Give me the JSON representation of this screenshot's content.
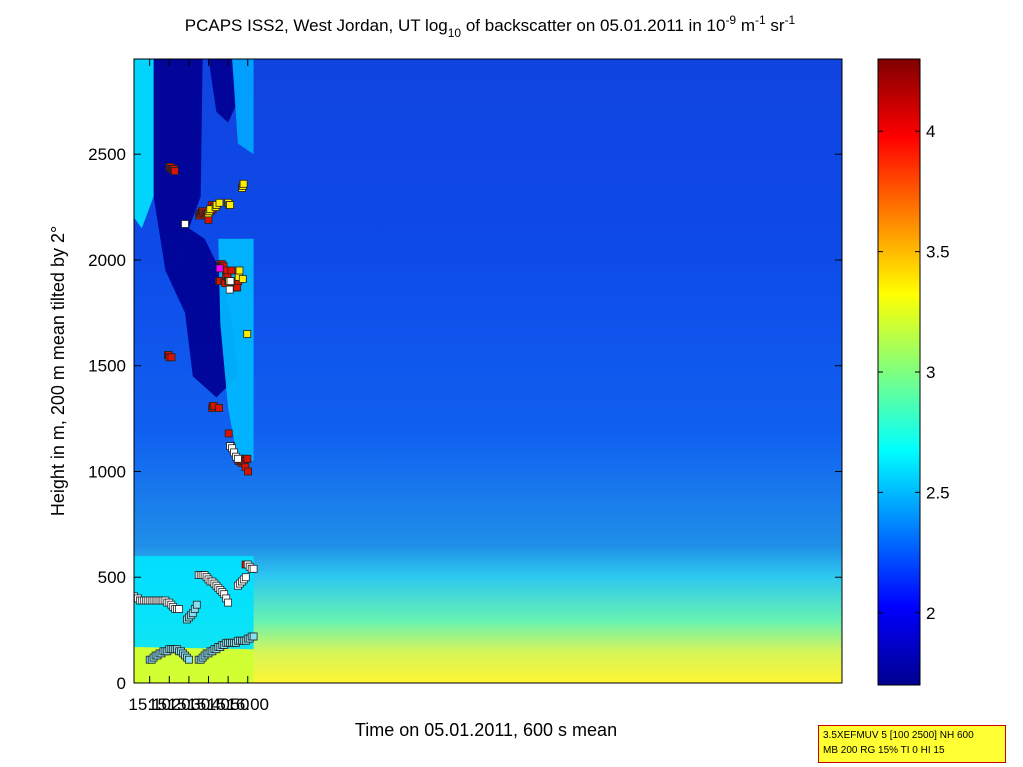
{
  "chart_data": {
    "type": "heatmap",
    "title": {
      "prefix": "PCAPS ISS2, West Jordan, UT log",
      "log_sub": "10",
      "mid": " of backscatter on 05.01.2011 in 10",
      "exp1": "-9",
      "unit_m": " m",
      "exp2": "-1",
      "unit_sr": " sr",
      "exp3": "-1"
    },
    "xlabel": "Time on 05.01.2011, 600 s mean",
    "ylabel": "Height in m, 200 m mean tilted by 2°",
    "x_range_min": [
      902,
      1263
    ],
    "ylim": [
      0,
      2950
    ],
    "x_ticks": [
      {
        "value": 910,
        "label": "15:10"
      },
      {
        "value": 920,
        "label": "15:20"
      },
      {
        "value": 930,
        "label": "15:30"
      },
      {
        "value": 940,
        "label": "15:40"
      },
      {
        "value": 950,
        "label": "15:50"
      },
      {
        "value": 960,
        "label": "16:00"
      }
    ],
    "y_ticks": [
      0,
      500,
      1000,
      1500,
      2000,
      2500
    ],
    "colorbar": {
      "range": [
        1.7,
        4.3
      ],
      "ticks": [
        2,
        2.5,
        3,
        3.5,
        4
      ],
      "tick_labels": [
        "2",
        "2.5",
        "3",
        "3.5",
        "4"
      ]
    },
    "regions": [
      {
        "name": "surface-layer",
        "value": 3.2,
        "polygon": [
          [
            902,
            0
          ],
          [
            963,
            0
          ],
          [
            963,
            160
          ],
          [
            902,
            170
          ]
        ]
      },
      {
        "name": "aerosol-top",
        "value": 2.6,
        "polygon": [
          [
            902,
            170
          ],
          [
            963,
            160
          ],
          [
            963,
            600
          ],
          [
            902,
            600
          ]
        ]
      },
      {
        "name": "dark-band-upper",
        "value": 1.75,
        "polygon": [
          [
            912,
            2950
          ],
          [
            937,
            2950
          ],
          [
            936,
            2300
          ],
          [
            930,
            2150
          ],
          [
            925,
            2000
          ],
          [
            918,
            1950
          ],
          [
            912,
            2300
          ]
        ]
      },
      {
        "name": "dark-band-mid",
        "value": 1.75,
        "polygon": [
          [
            918,
            1950
          ],
          [
            928,
            1750
          ],
          [
            932,
            1450
          ],
          [
            944,
            1350
          ],
          [
            955,
            1450
          ],
          [
            952,
            1700
          ],
          [
            946,
            1950
          ],
          [
            938,
            2100
          ],
          [
            930,
            2150
          ],
          [
            925,
            2000
          ]
        ]
      },
      {
        "name": "dark-top-right",
        "value": 1.75,
        "polygon": [
          [
            940,
            2950
          ],
          [
            952,
            2950
          ],
          [
            955,
            2750
          ],
          [
            950,
            2650
          ],
          [
            944,
            2700
          ]
        ]
      },
      {
        "name": "light-upper-left",
        "value": 2.6,
        "polygon": [
          [
            902,
            2950
          ],
          [
            912,
            2950
          ],
          [
            912,
            2300
          ],
          [
            906,
            2150
          ],
          [
            902,
            2200
          ]
        ]
      },
      {
        "name": "light-right",
        "value": 2.5,
        "polygon": [
          [
            945,
            2100
          ],
          [
            963,
            2100
          ],
          [
            963,
            1050
          ],
          [
            955,
            1050
          ],
          [
            950,
            1300
          ],
          [
            946,
            1700
          ]
        ]
      },
      {
        "name": "light-top-right",
        "value": 2.45,
        "polygon": [
          [
            952,
            2950
          ],
          [
            963,
            2950
          ],
          [
            963,
            2500
          ],
          [
            955,
            2550
          ]
        ]
      }
    ],
    "series": [
      {
        "name": "cloud-base-red",
        "color": "#dd1100",
        "points": [
          [
            920.1,
            2440
          ],
          [
            920.6,
            2440
          ],
          [
            921.1,
            2430
          ],
          [
            921.5,
            2430
          ],
          [
            922,
            2430
          ],
          [
            922.4,
            2430
          ],
          [
            922.8,
            2420
          ],
          [
            919.3,
            1550
          ],
          [
            919.7,
            1550
          ],
          [
            920.1,
            1540
          ],
          [
            921.1,
            1540
          ],
          [
            935.2,
            2210
          ],
          [
            935.7,
            2220
          ],
          [
            936.1,
            2220
          ],
          [
            936.6,
            2230
          ],
          [
            937,
            2230
          ],
          [
            937.5,
            2220
          ],
          [
            938.3,
            2210
          ],
          [
            938.8,
            2220
          ],
          [
            939.3,
            2220
          ],
          [
            940,
            2190
          ],
          [
            941.1,
            2230
          ],
          [
            941.6,
            2260
          ],
          [
            942.1,
            2240
          ],
          [
            942.6,
            2250
          ],
          [
            941.8,
            1300
          ],
          [
            942.2,
            1310
          ],
          [
            942.7,
            1310
          ],
          [
            945.4,
            1300
          ],
          [
            945.3,
            1900
          ],
          [
            945.8,
            1900
          ],
          [
            946,
            1980
          ],
          [
            946.4,
            1970
          ],
          [
            946.8,
            1980
          ],
          [
            947.2,
            1970
          ],
          [
            947.7,
            1970
          ],
          [
            948.1,
            1900
          ],
          [
            948.5,
            1890
          ],
          [
            948.9,
            1930
          ],
          [
            949.3,
            1950
          ],
          [
            949.7,
            1920
          ],
          [
            950.1,
            1900
          ],
          [
            951.2,
            1880
          ],
          [
            951.7,
            1950
          ],
          [
            952.2,
            1890
          ],
          [
            952.6,
            1880
          ],
          [
            953,
            1870
          ],
          [
            953.4,
            1870
          ],
          [
            953.8,
            1870
          ],
          [
            954.2,
            1870
          ],
          [
            954.6,
            1870
          ],
          [
            955.2,
            1900
          ],
          [
            950.3,
            1180
          ],
          [
            954.8,
            1060
          ],
          [
            955.3,
            1050
          ],
          [
            955.8,
            1060
          ],
          [
            956.3,
            1050
          ],
          [
            956.8,
            1040
          ],
          [
            957.3,
            1050
          ],
          [
            957.8,
            1060
          ],
          [
            958.3,
            1050
          ],
          [
            958.8,
            1020
          ],
          [
            959.3,
            1060
          ],
          [
            959.8,
            1060
          ],
          [
            960.2,
            1000
          ],
          [
            958.9,
            560
          ]
        ]
      },
      {
        "name": "cloud-base-yellow",
        "color": "#ffee00",
        "points": [
          [
            939.9,
            2220
          ],
          [
            940.4,
            2230
          ],
          [
            940.9,
            2240
          ],
          [
            943.6,
            2250
          ],
          [
            944.1,
            2260
          ],
          [
            945.6,
            2270
          ],
          [
            950.1,
            2270
          ],
          [
            950.6,
            2260
          ],
          [
            951,
            2260
          ],
          [
            957.1,
            2340
          ],
          [
            957.5,
            2350
          ],
          [
            957.9,
            2360
          ],
          [
            950.5,
            1900
          ],
          [
            955.4,
            1920
          ],
          [
            955.8,
            1950
          ],
          [
            957.5,
            1910
          ],
          [
            959.7,
            1650
          ]
        ]
      },
      {
        "name": "cloud-base-magenta",
        "color": "#ff00ff",
        "points": [
          [
            945.7,
            1960
          ]
        ]
      },
      {
        "name": "mixing-height-white",
        "color": "#ffffff",
        "points": [
          [
            902,
            410
          ],
          [
            903,
            400
          ],
          [
            904,
            400
          ],
          [
            905,
            390
          ],
          [
            906,
            390
          ],
          [
            907,
            390
          ],
          [
            908,
            390
          ],
          [
            909,
            390
          ],
          [
            910,
            390
          ],
          [
            911,
            390
          ],
          [
            912,
            390
          ],
          [
            913,
            390
          ],
          [
            914,
            390
          ],
          [
            915,
            390
          ],
          [
            916,
            390
          ],
          [
            917,
            390
          ],
          [
            918,
            390
          ],
          [
            919,
            380
          ],
          [
            920,
            380
          ],
          [
            921,
            370
          ],
          [
            922,
            360
          ],
          [
            923,
            350
          ],
          [
            924,
            350
          ],
          [
            925,
            350
          ],
          [
            928,
            2170
          ],
          [
            950.8,
            1860
          ],
          [
            951.2,
            1900
          ],
          [
            951.5,
            1120
          ],
          [
            935,
            510
          ],
          [
            936,
            510
          ],
          [
            937,
            510
          ],
          [
            938,
            510
          ],
          [
            939,
            500
          ],
          [
            940,
            490
          ],
          [
            941,
            480
          ],
          [
            942,
            480
          ],
          [
            943,
            470
          ],
          [
            944,
            460
          ],
          [
            945,
            450
          ],
          [
            946,
            440
          ],
          [
            947,
            430
          ],
          [
            948,
            420
          ],
          [
            949,
            400
          ],
          [
            950,
            380
          ],
          [
            951,
            1120
          ],
          [
            952,
            1110
          ],
          [
            953,
            1090
          ],
          [
            954,
            1070
          ],
          [
            955,
            1060
          ],
          [
            955,
            460
          ],
          [
            956,
            470
          ],
          [
            957,
            480
          ],
          [
            958,
            490
          ],
          [
            959,
            500
          ],
          [
            960,
            560
          ],
          [
            961,
            550
          ],
          [
            962,
            540
          ],
          [
            963,
            540
          ]
        ]
      },
      {
        "name": "mixing-height-cyan",
        "color": "#88ddee",
        "points": [
          [
            910,
            110
          ],
          [
            911,
            110
          ],
          [
            912,
            120
          ],
          [
            913,
            130
          ],
          [
            914,
            130
          ],
          [
            915,
            140
          ],
          [
            916,
            140
          ],
          [
            917,
            150
          ],
          [
            918,
            150
          ],
          [
            919,
            150
          ],
          [
            920,
            160
          ],
          [
            921,
            160
          ],
          [
            922,
            160
          ],
          [
            923,
            160
          ],
          [
            924,
            160
          ],
          [
            925,
            150
          ],
          [
            926,
            150
          ],
          [
            927,
            140
          ],
          [
            928,
            130
          ],
          [
            929,
            120
          ],
          [
            930,
            110
          ],
          [
            929,
            300
          ],
          [
            930,
            310
          ],
          [
            931,
            320
          ],
          [
            932,
            330
          ],
          [
            933,
            350
          ],
          [
            934,
            370
          ],
          [
            935,
            110
          ],
          [
            936,
            110
          ],
          [
            937,
            120
          ],
          [
            938,
            130
          ],
          [
            939,
            140
          ],
          [
            940,
            140
          ],
          [
            941,
            150
          ],
          [
            942,
            150
          ],
          [
            943,
            160
          ],
          [
            944,
            160
          ],
          [
            945,
            170
          ],
          [
            946,
            170
          ],
          [
            947,
            180
          ],
          [
            948,
            180
          ],
          [
            949,
            190
          ],
          [
            950,
            190
          ],
          [
            951,
            190
          ],
          [
            952,
            190
          ],
          [
            953,
            190
          ],
          [
            954,
            190
          ],
          [
            955,
            200
          ],
          [
            956,
            200
          ],
          [
            957,
            200
          ],
          [
            958,
            200
          ],
          [
            959,
            200
          ],
          [
            960,
            210
          ],
          [
            961,
            210
          ],
          [
            962,
            220
          ],
          [
            963,
            220
          ]
        ]
      }
    ]
  },
  "legend_note": {
    "line1": "3.5XEFMUV 5 [100 2500] NH 600",
    "line2": "MB 200 RG 15% TI 0 HI 15"
  },
  "colors": {
    "jet_low": "#00008f",
    "jet_high": "#800000"
  }
}
